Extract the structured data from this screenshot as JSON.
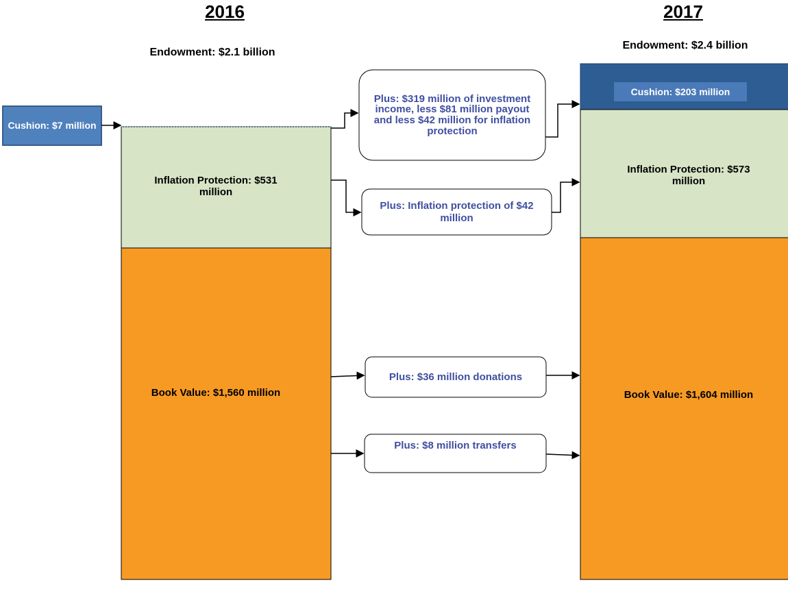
{
  "left": {
    "year": "2016",
    "endowment": "Endowment: $2.1 billion",
    "cushion": "Cushion: $7 million",
    "inflation": "Inflation Protection: $531 million",
    "book": "Book Value: $1,560 million"
  },
  "right": {
    "year": "2017",
    "endowment": "Endowment: $2.4 billion",
    "cushion": "Cushion: $203 million",
    "inflation": "Inflation Protection: $573 million",
    "book": "Book Value: $1,604 million"
  },
  "flows": [
    "Plus: $319 million of investment income, less $81 million payout and less $42 million for inflation protection",
    "Plus: Inflation protection of $42 million",
    "Plus: $36 million donations",
    "Plus: $8 million transfers"
  ]
}
